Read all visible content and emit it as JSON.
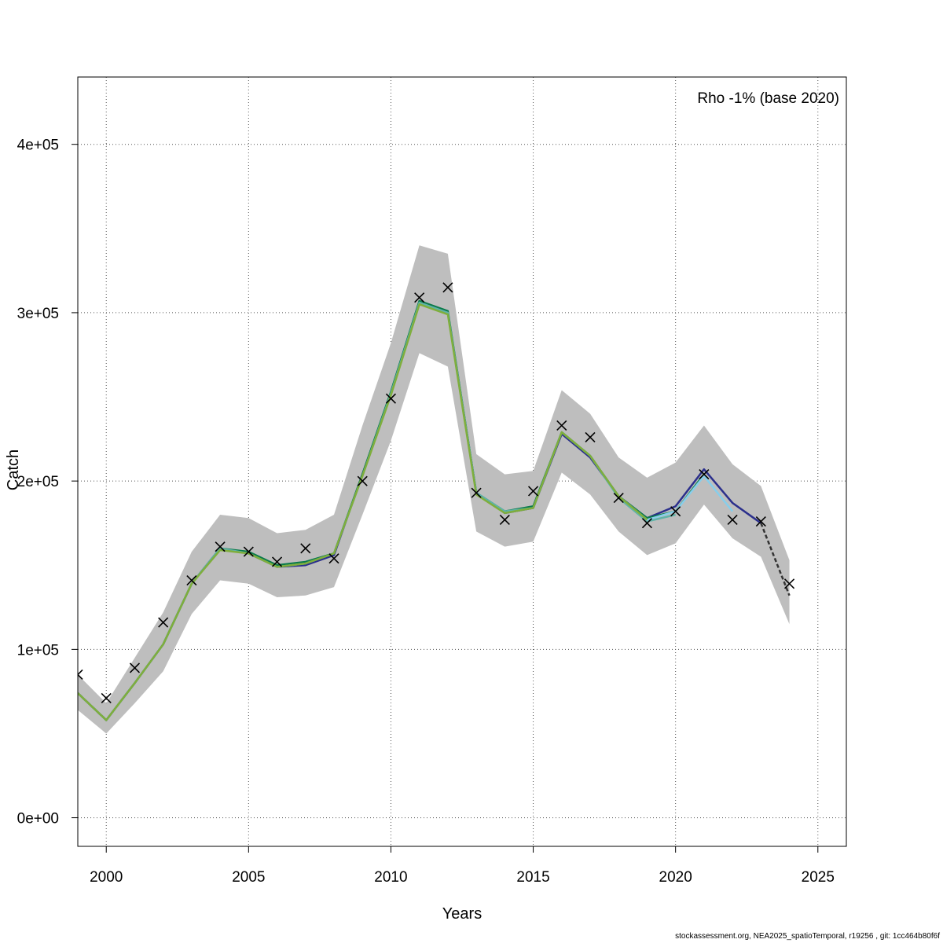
{
  "chart_data": {
    "type": "line",
    "title": "",
    "xlabel": "Years",
    "ylabel": "Catch",
    "xlim": [
      1999,
      2026
    ],
    "ylim": [
      -17000,
      440000
    ],
    "x_ticks": [
      2000,
      2005,
      2010,
      2015,
      2020,
      2025
    ],
    "x_tick_labels": [
      "2000",
      "2005",
      "2010",
      "2015",
      "2020",
      "2025"
    ],
    "y_ticks": [
      0,
      100000,
      200000,
      300000,
      400000
    ],
    "y_tick_labels": [
      "0e+00",
      "1e+05",
      "2e+05",
      "3e+05",
      "4e+05"
    ],
    "grid": true,
    "annotation": "Rho -1% (base 2020)",
    "confidence_band": {
      "color": "#bebebe",
      "x": [
        1999,
        2000,
        2001,
        2002,
        2003,
        2004,
        2005,
        2006,
        2007,
        2008,
        2009,
        2010,
        2011,
        2012,
        2013,
        2014,
        2015,
        2016,
        2017,
        2018,
        2019,
        2020,
        2021,
        2022,
        2023,
        2024
      ],
      "upper": [
        85000,
        68000,
        95000,
        122000,
        158000,
        180000,
        178000,
        169000,
        171000,
        180000,
        233000,
        282000,
        340000,
        335000,
        216000,
        204000,
        206000,
        254000,
        240000,
        214000,
        202000,
        211000,
        233000,
        210000,
        197000,
        153000
      ],
      "lower": [
        64000,
        50000,
        68000,
        87000,
        121000,
        141000,
        139000,
        131000,
        132000,
        137000,
        180000,
        224000,
        276000,
        268000,
        170000,
        161000,
        164000,
        205000,
        192000,
        170000,
        156000,
        163000,
        186000,
        166000,
        155000,
        115000
      ]
    },
    "series": [
      {
        "color": "#2b2f8c",
        "x": [
          1999,
          2000,
          2001,
          2002,
          2003,
          2004,
          2005,
          2006,
          2007,
          2008,
          2009,
          2010,
          2011,
          2012,
          2013,
          2014,
          2015,
          2016,
          2017,
          2018,
          2019,
          2020,
          2021,
          2022,
          2023
        ],
        "values": [
          74000,
          58000,
          80000,
          103000,
          139000,
          160000,
          157000,
          149000,
          150000,
          156000,
          204000,
          252000,
          306000,
          300000,
          193000,
          181000,
          184000,
          228000,
          214000,
          191000,
          178000,
          185000,
          207000,
          187000,
          175000
        ]
      },
      {
        "color": "#0b7a4a",
        "x": [
          1999,
          2000,
          2001,
          2002,
          2003,
          2004,
          2005,
          2006,
          2007,
          2008,
          2009,
          2010,
          2011,
          2012,
          2013,
          2014,
          2015,
          2016,
          2017,
          2018,
          2019,
          2020,
          2021
        ],
        "values": [
          74000,
          58000,
          80000,
          103000,
          139000,
          160000,
          158000,
          150000,
          152000,
          157000,
          204000,
          253000,
          307000,
          301000,
          193000,
          182000,
          185000,
          229000,
          215000,
          191000,
          178000,
          182000,
          204000
        ]
      },
      {
        "color": "#5fb3a8",
        "x": [
          1999,
          2000,
          2001,
          2002,
          2003,
          2004,
          2005,
          2006,
          2007,
          2008,
          2009,
          2010,
          2011,
          2012,
          2013,
          2014,
          2015,
          2016,
          2017,
          2018,
          2019,
          2020
        ],
        "values": [
          74000,
          58000,
          80000,
          103000,
          139000,
          160000,
          157000,
          149000,
          151000,
          157000,
          203000,
          252000,
          306000,
          300000,
          193000,
          182000,
          184000,
          229000,
          215000,
          190000,
          176000,
          180000
        ]
      },
      {
        "color": "#87ceeb",
        "x": [
          2018,
          2019,
          2020,
          2021,
          2022
        ],
        "values": [
          191000,
          177000,
          182000,
          203000,
          182000
        ]
      },
      {
        "color": "#7fae3c",
        "x": [
          1999,
          2000,
          2001,
          2002,
          2003,
          2004,
          2005,
          2006,
          2007,
          2008,
          2009,
          2010,
          2011,
          2012,
          2013,
          2014,
          2015,
          2016,
          2017,
          2018,
          2019
        ],
        "values": [
          74000,
          58000,
          80000,
          103000,
          139000,
          159000,
          157000,
          149000,
          151000,
          157000,
          203000,
          251000,
          305000,
          299000,
          192000,
          181000,
          184000,
          229000,
          215000,
          191000,
          177000
        ]
      }
    ],
    "forecast": {
      "color": "#333333",
      "x": [
        2023,
        2024
      ],
      "values": [
        175000,
        132000
      ]
    },
    "observed": {
      "marker": "x",
      "x": [
        1999,
        2000,
        2001,
        2002,
        2003,
        2004,
        2005,
        2006,
        2007,
        2008,
        2009,
        2010,
        2011,
        2012,
        2013,
        2014,
        2015,
        2016,
        2017,
        2018,
        2019,
        2020,
        2021,
        2022,
        2023,
        2024
      ],
      "values": [
        85000,
        71000,
        89000,
        116000,
        141000,
        161000,
        158000,
        152000,
        160000,
        154000,
        200000,
        249000,
        309000,
        315000,
        193000,
        177000,
        194000,
        233000,
        226000,
        190000,
        175000,
        182000,
        204000,
        177000,
        176000,
        139000
      ]
    }
  },
  "footer": "stockassessment.org, NEA2025_spatioTemporal, r19256 , git: 1cc464b80f6f"
}
